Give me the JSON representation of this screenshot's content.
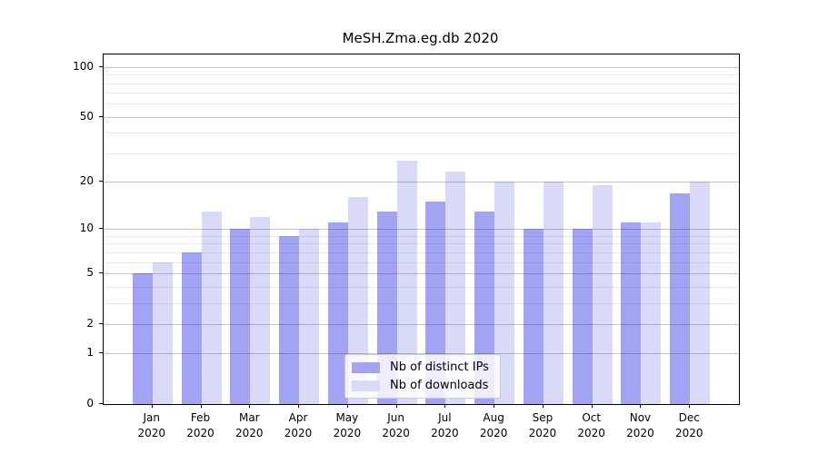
{
  "chart_data": {
    "type": "bar",
    "title": "MeSH.Zma.eg.db 2020",
    "categories": [
      "Jan 2020",
      "Feb 2020",
      "Mar 2020",
      "Apr 2020",
      "May 2020",
      "Jun 2020",
      "Jul 2020",
      "Aug 2020",
      "Sep 2020",
      "Oct 2020",
      "Nov 2020",
      "Dec 2020"
    ],
    "series": [
      {
        "name": "Nb of distinct IPs",
        "color": "#A3A3F4",
        "values": [
          5,
          7,
          10,
          9,
          11,
          13,
          15,
          13,
          10,
          10,
          11,
          17
        ]
      },
      {
        "name": "Nb of downloads",
        "color": "#D9D9F8",
        "values": [
          6,
          13,
          12,
          10,
          16,
          27,
          23,
          20,
          20,
          19,
          11,
          20
        ]
      }
    ],
    "xlabel": "",
    "ylabel": "",
    "yscale": "log1p",
    "ylim": [
      0,
      119
    ],
    "yticks": [
      100,
      50,
      20,
      10,
      5,
      2,
      1,
      0
    ],
    "ytick_labels": [
      "100",
      "50",
      "20",
      "10",
      "5",
      "2",
      "1",
      "0"
    ],
    "minor_gridlines": [
      3,
      4,
      6,
      7,
      8,
      9,
      30,
      40,
      60,
      70,
      80,
      90
    ],
    "grid": true,
    "legend_position": "inside-lower-center",
    "colors": {
      "major_grid": "#C7C7C7",
      "minor_grid": "#EBEBEB",
      "axis": "#000000"
    }
  }
}
